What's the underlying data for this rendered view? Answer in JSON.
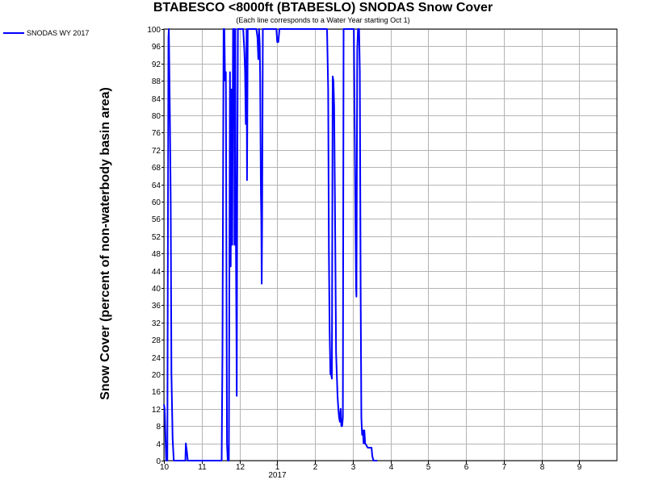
{
  "chart_data": {
    "type": "line",
    "title": "BTABESCO <8000ft (BTABESLO) SNODAS Snow Cover",
    "subtitle": "(Each line corresponds to a Water Year starting Oct 1)",
    "ylabel": "Snow Cover (percent of non-waterbody basin area)",
    "xlabel": "",
    "ylim": [
      0,
      100
    ],
    "yticks": [
      0,
      4,
      8,
      12,
      16,
      20,
      24,
      28,
      32,
      36,
      40,
      44,
      48,
      52,
      56,
      60,
      64,
      68,
      72,
      76,
      80,
      84,
      88,
      92,
      96,
      100
    ],
    "xlim": [
      0,
      12
    ],
    "xticks": [
      {
        "x": 0,
        "label": "10"
      },
      {
        "x": 1,
        "label": "11"
      },
      {
        "x": 2,
        "label": "12"
      },
      {
        "x": 3,
        "label": "1",
        "sublabel": "2017"
      },
      {
        "x": 4,
        "label": "2"
      },
      {
        "x": 5,
        "label": "3"
      },
      {
        "x": 6,
        "label": "4"
      },
      {
        "x": 7,
        "label": "5"
      },
      {
        "x": 8,
        "label": "6"
      },
      {
        "x": 9,
        "label": "7"
      },
      {
        "x": 10,
        "label": "8"
      },
      {
        "x": 11,
        "label": "9"
      }
    ],
    "grid": true,
    "legend_position": "top-left",
    "series": [
      {
        "name": "SNODAS WY 2017",
        "color": "#0000ff",
        "points": [
          [
            0.0,
            13
          ],
          [
            0.02,
            12
          ],
          [
            0.06,
            0
          ],
          [
            0.09,
            0
          ],
          [
            0.12,
            98
          ],
          [
            0.13,
            100
          ],
          [
            0.16,
            78
          ],
          [
            0.18,
            60
          ],
          [
            0.2,
            20
          ],
          [
            0.23,
            5
          ],
          [
            0.26,
            0
          ],
          [
            0.5,
            0
          ],
          [
            0.57,
            0
          ],
          [
            0.58,
            4
          ],
          [
            0.61,
            2
          ],
          [
            0.63,
            0
          ],
          [
            1.0,
            0
          ],
          [
            1.5,
            0
          ],
          [
            1.53,
            0
          ],
          [
            1.55,
            25
          ],
          [
            1.58,
            100
          ],
          [
            1.6,
            100
          ],
          [
            1.62,
            88
          ],
          [
            1.64,
            90
          ],
          [
            1.67,
            4
          ],
          [
            1.69,
            0
          ],
          [
            1.72,
            0
          ],
          [
            1.75,
            90
          ],
          [
            1.77,
            45
          ],
          [
            1.79,
            86
          ],
          [
            1.81,
            50
          ],
          [
            1.83,
            100
          ],
          [
            1.86,
            100
          ],
          [
            1.87,
            50
          ],
          [
            1.89,
            100
          ],
          [
            1.9,
            63
          ],
          [
            1.92,
            30
          ],
          [
            1.93,
            15
          ],
          [
            1.94,
            60
          ],
          [
            1.96,
            100
          ],
          [
            2.0,
            100
          ],
          [
            2.1,
            100
          ],
          [
            2.13,
            95
          ],
          [
            2.15,
            90
          ],
          [
            2.17,
            78
          ],
          [
            2.19,
            100
          ],
          [
            2.2,
            65
          ],
          [
            2.22,
            100
          ],
          [
            2.25,
            100
          ],
          [
            2.45,
            100
          ],
          [
            2.48,
            98
          ],
          [
            2.5,
            93
          ],
          [
            2.52,
            100
          ],
          [
            2.54,
            96
          ],
          [
            2.55,
            88
          ],
          [
            2.57,
            62
          ],
          [
            2.58,
            56
          ],
          [
            2.59,
            41
          ],
          [
            2.6,
            55
          ],
          [
            2.62,
            100
          ],
          [
            2.95,
            100
          ],
          [
            2.98,
            100
          ],
          [
            3.0,
            97
          ],
          [
            3.03,
            97
          ],
          [
            3.06,
            100
          ],
          [
            3.08,
            100
          ],
          [
            3.25,
            100
          ],
          [
            3.3,
            100
          ],
          [
            3.3,
            100
          ],
          [
            3.32,
            100
          ],
          [
            3.35,
            100
          ],
          [
            3.4,
            100
          ],
          [
            3.5,
            100
          ],
          [
            3.6,
            100
          ],
          [
            3.7,
            100
          ],
          [
            3.8,
            100
          ],
          [
            3.9,
            100
          ],
          [
            4.0,
            100
          ],
          [
            4.2,
            100
          ],
          [
            4.32,
            100
          ],
          [
            4.35,
            86
          ],
          [
            4.37,
            48
          ],
          [
            4.39,
            30
          ],
          [
            4.41,
            20
          ],
          [
            4.43,
            20
          ],
          [
            4.45,
            19
          ],
          [
            4.47,
            89
          ],
          [
            4.49,
            88
          ],
          [
            4.51,
            82
          ],
          [
            4.53,
            60
          ],
          [
            4.56,
            25
          ],
          [
            4.58,
            20
          ],
          [
            4.6,
            15
          ],
          [
            4.62,
            12
          ],
          [
            4.64,
            10
          ],
          [
            4.66,
            9
          ],
          [
            4.68,
            12
          ],
          [
            4.7,
            8
          ],
          [
            4.72,
            8
          ],
          [
            4.74,
            10
          ],
          [
            4.76,
            100
          ],
          [
            4.78,
            100
          ],
          [
            4.8,
            100
          ],
          [
            4.85,
            100
          ],
          [
            4.9,
            100
          ],
          [
            4.95,
            100
          ],
          [
            5.0,
            100
          ],
          [
            5.03,
            100
          ],
          [
            5.05,
            80
          ],
          [
            5.07,
            60
          ],
          [
            5.09,
            40
          ],
          [
            5.1,
            38
          ],
          [
            5.12,
            95
          ],
          [
            5.14,
            100
          ],
          [
            5.17,
            100
          ],
          [
            5.19,
            90
          ],
          [
            5.21,
            40
          ],
          [
            5.23,
            10
          ],
          [
            5.25,
            6
          ],
          [
            5.27,
            7
          ],
          [
            5.29,
            4
          ],
          [
            5.31,
            7
          ],
          [
            5.33,
            4
          ],
          [
            5.4,
            3
          ],
          [
            5.45,
            3
          ],
          [
            5.5,
            3
          ],
          [
            5.52,
            1
          ],
          [
            5.55,
            0
          ],
          [
            5.6,
            0
          ],
          [
            5.65,
            0
          ]
        ]
      }
    ]
  },
  "legend": {
    "label": "SNODAS WY 2017"
  }
}
